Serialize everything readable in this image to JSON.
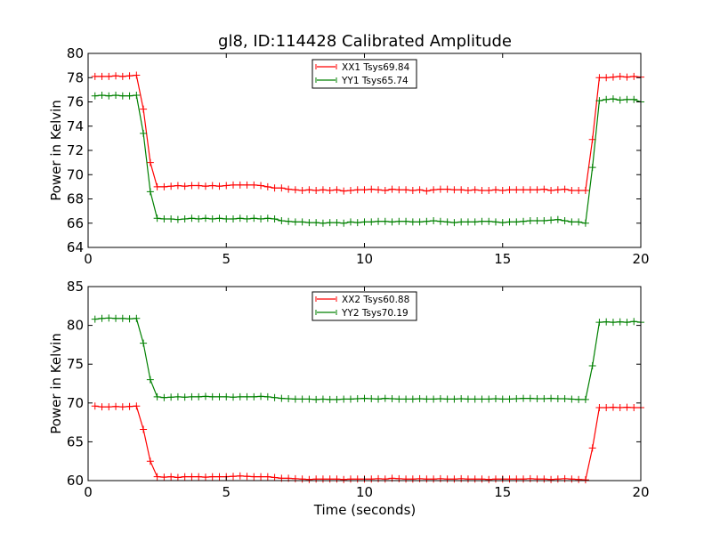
{
  "chart_data": [
    {
      "type": "line",
      "title": "gl8, ID:114428 Calibrated Amplitude",
      "xlabel": "",
      "ylabel": "Power in Kelvin",
      "xlim": [
        0,
        20
      ],
      "ylim": [
        64,
        80
      ],
      "xticks": [
        "0",
        "5",
        "10",
        "15",
        "20"
      ],
      "yticks": [
        "64",
        "66",
        "68",
        "70",
        "72",
        "74",
        "76",
        "78",
        "80"
      ],
      "legend_position": "top-center",
      "x": [
        0.25,
        0.5,
        0.75,
        1.0,
        1.25,
        1.5,
        1.75,
        2.0,
        2.25,
        2.5,
        2.75,
        3.0,
        3.25,
        3.5,
        3.75,
        4.0,
        4.25,
        4.5,
        4.75,
        5.0,
        5.25,
        5.5,
        5.75,
        6.0,
        6.25,
        6.5,
        6.75,
        7.0,
        7.25,
        7.5,
        7.75,
        8.0,
        8.25,
        8.5,
        8.75,
        9.0,
        9.25,
        9.5,
        9.75,
        10.0,
        10.25,
        10.5,
        10.75,
        11.0,
        11.25,
        11.5,
        11.75,
        12.0,
        12.25,
        12.5,
        12.75,
        13.0,
        13.25,
        13.5,
        13.75,
        14.0,
        14.25,
        14.5,
        14.75,
        15.0,
        15.25,
        15.5,
        15.75,
        16.0,
        16.25,
        16.5,
        16.75,
        17.0,
        17.25,
        17.5,
        17.75,
        18.0,
        18.25,
        18.5,
        18.75,
        19.0,
        19.25,
        19.5,
        19.75,
        20.0
      ],
      "series": [
        {
          "name": "XX1 Tsys69.84",
          "color": "#ff0000",
          "values": [
            78.1,
            78.1,
            78.1,
            78.15,
            78.1,
            78.15,
            78.2,
            75.4,
            71.0,
            69.0,
            69.0,
            69.05,
            69.1,
            69.05,
            69.1,
            69.1,
            69.05,
            69.1,
            69.05,
            69.1,
            69.15,
            69.15,
            69.15,
            69.15,
            69.1,
            69.0,
            68.9,
            68.9,
            68.8,
            68.75,
            68.7,
            68.75,
            68.7,
            68.75,
            68.7,
            68.75,
            68.65,
            68.7,
            68.75,
            68.75,
            68.8,
            68.75,
            68.7,
            68.8,
            68.75,
            68.75,
            68.7,
            68.75,
            68.65,
            68.75,
            68.8,
            68.8,
            68.75,
            68.75,
            68.7,
            68.75,
            68.7,
            68.7,
            68.75,
            68.7,
            68.75,
            68.75,
            68.75,
            68.75,
            68.75,
            68.8,
            68.7,
            68.75,
            68.8,
            68.7,
            68.7,
            68.7,
            72.9,
            78.0,
            78.0,
            78.05,
            78.1,
            78.05,
            78.1,
            78.05
          ]
        },
        {
          "name": "YY1 Tsys65.74",
          "color": "#008000",
          "values": [
            76.5,
            76.55,
            76.5,
            76.55,
            76.5,
            76.5,
            76.55,
            73.4,
            68.6,
            66.4,
            66.35,
            66.35,
            66.3,
            66.35,
            66.4,
            66.35,
            66.4,
            66.35,
            66.4,
            66.35,
            66.35,
            66.4,
            66.35,
            66.4,
            66.35,
            66.4,
            66.35,
            66.2,
            66.15,
            66.1,
            66.1,
            66.05,
            66.05,
            66.0,
            66.05,
            66.05,
            66.0,
            66.1,
            66.05,
            66.1,
            66.1,
            66.15,
            66.15,
            66.1,
            66.15,
            66.15,
            66.1,
            66.1,
            66.15,
            66.2,
            66.15,
            66.1,
            66.05,
            66.1,
            66.1,
            66.1,
            66.15,
            66.15,
            66.1,
            66.05,
            66.1,
            66.1,
            66.15,
            66.2,
            66.2,
            66.2,
            66.25,
            66.3,
            66.2,
            66.1,
            66.1,
            66.0,
            70.6,
            76.1,
            76.2,
            76.25,
            76.15,
            76.2,
            76.2,
            76.0
          ]
        }
      ]
    },
    {
      "type": "line",
      "title": "",
      "xlabel": "Time (seconds)",
      "ylabel": "Power in Kelvin",
      "xlim": [
        0,
        20
      ],
      "ylim": [
        60,
        85
      ],
      "xticks": [
        "0",
        "5",
        "10",
        "15",
        "20"
      ],
      "yticks": [
        "60",
        "65",
        "70",
        "75",
        "80",
        "85"
      ],
      "legend_position": "top-center",
      "x": [
        0.25,
        0.5,
        0.75,
        1.0,
        1.25,
        1.5,
        1.75,
        2.0,
        2.25,
        2.5,
        2.75,
        3.0,
        3.25,
        3.5,
        3.75,
        4.0,
        4.25,
        4.5,
        4.75,
        5.0,
        5.25,
        5.5,
        5.75,
        6.0,
        6.25,
        6.5,
        6.75,
        7.0,
        7.25,
        7.5,
        7.75,
        8.0,
        8.25,
        8.5,
        8.75,
        9.0,
        9.25,
        9.5,
        9.75,
        10.0,
        10.25,
        10.5,
        10.75,
        11.0,
        11.25,
        11.5,
        11.75,
        12.0,
        12.25,
        12.5,
        12.75,
        13.0,
        13.25,
        13.5,
        13.75,
        14.0,
        14.25,
        14.5,
        14.75,
        15.0,
        15.25,
        15.5,
        15.75,
        16.0,
        16.25,
        16.5,
        16.75,
        17.0,
        17.25,
        17.5,
        17.75,
        18.0,
        18.25,
        18.5,
        18.75,
        19.0,
        19.25,
        19.5,
        19.75,
        20.0
      ],
      "series": [
        {
          "name": "XX2 Tsys60.88",
          "color": "#ff0000",
          "values": [
            69.6,
            69.5,
            69.5,
            69.55,
            69.5,
            69.55,
            69.6,
            66.6,
            62.5,
            60.5,
            60.45,
            60.5,
            60.4,
            60.5,
            60.5,
            60.5,
            60.45,
            60.5,
            60.5,
            60.5,
            60.55,
            60.6,
            60.55,
            60.5,
            60.5,
            60.5,
            60.4,
            60.3,
            60.3,
            60.25,
            60.2,
            60.15,
            60.2,
            60.2,
            60.2,
            60.2,
            60.15,
            60.2,
            60.2,
            60.2,
            60.2,
            60.25,
            60.2,
            60.3,
            60.25,
            60.2,
            60.2,
            60.25,
            60.2,
            60.2,
            60.25,
            60.2,
            60.2,
            60.25,
            60.2,
            60.2,
            60.2,
            60.15,
            60.2,
            60.2,
            60.2,
            60.2,
            60.2,
            60.25,
            60.2,
            60.2,
            60.15,
            60.2,
            60.25,
            60.2,
            60.15,
            60.1,
            64.2,
            69.4,
            69.4,
            69.45,
            69.4,
            69.45,
            69.4,
            69.4
          ]
        },
        {
          "name": "YY2 Tsys70.19",
          "color": "#008000",
          "values": [
            80.8,
            80.9,
            80.95,
            80.9,
            80.9,
            80.85,
            80.9,
            77.7,
            73.0,
            70.8,
            70.7,
            70.75,
            70.8,
            70.75,
            70.8,
            70.8,
            70.85,
            70.8,
            70.8,
            70.8,
            70.75,
            70.8,
            70.8,
            70.8,
            70.85,
            70.8,
            70.7,
            70.6,
            70.55,
            70.5,
            70.5,
            70.5,
            70.45,
            70.5,
            70.45,
            70.45,
            70.5,
            70.5,
            70.55,
            70.6,
            70.55,
            70.5,
            70.6,
            70.55,
            70.5,
            70.5,
            70.5,
            70.55,
            70.5,
            70.5,
            70.55,
            70.5,
            70.5,
            70.55,
            70.5,
            70.5,
            70.5,
            70.5,
            70.55,
            70.5,
            70.5,
            70.55,
            70.6,
            70.6,
            70.55,
            70.55,
            70.6,
            70.55,
            70.55,
            70.5,
            70.45,
            70.45,
            74.8,
            80.4,
            80.45,
            80.4,
            80.45,
            80.4,
            80.5,
            80.4
          ]
        }
      ]
    }
  ]
}
